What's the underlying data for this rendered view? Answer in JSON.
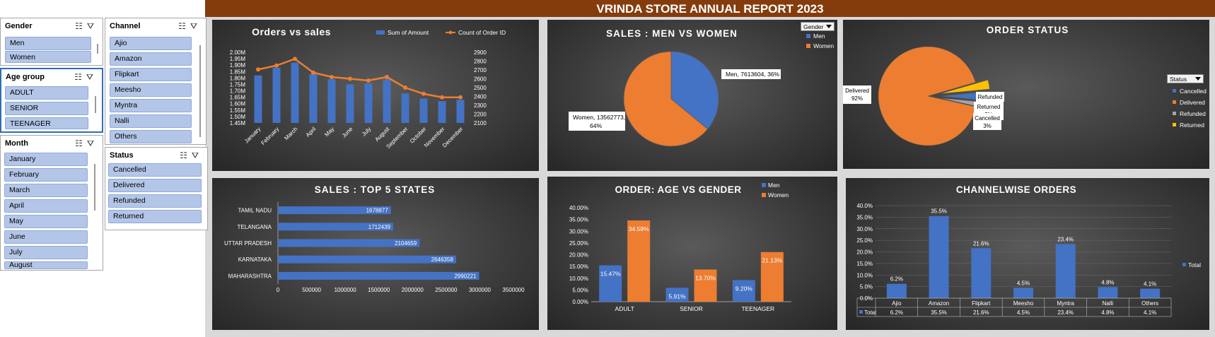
{
  "report": {
    "title": "VRINDA STORE ANNUAL REPORT 2023"
  },
  "colors": {
    "men": "#4472c4",
    "women": "#ed7d31",
    "line": "#ed7d31",
    "banner": "#843c0c",
    "refunded": "#a5a5a5",
    "returned": "#ffc000"
  },
  "slicers": {
    "gender": {
      "title": "Gender",
      "items": [
        "Men",
        "Women"
      ]
    },
    "channel": {
      "title": "Channel",
      "items": [
        "Ajio",
        "Amazon",
        "Flipkart",
        "Meesho",
        "Myntra",
        "Nalli",
        "Others"
      ]
    },
    "age_group": {
      "title": "Age group",
      "items": [
        "ADULT",
        "SENIOR",
        "TEENAGER"
      ]
    },
    "month": {
      "title": "Month",
      "items": [
        "January",
        "February",
        "March",
        "April",
        "May",
        "June",
        "July",
        "August"
      ]
    },
    "status": {
      "title": "Status",
      "items": [
        "Cancelled",
        "Delivered",
        "Refunded",
        "Returned"
      ]
    }
  },
  "dropdowns": {
    "gender_filter": "Gender",
    "status_filter": "Status"
  },
  "chart_data": [
    {
      "id": "orders_vs_sales",
      "type": "bar+line",
      "title": "Orders vs sales",
      "categories": [
        "January",
        "February",
        "March",
        "April",
        "May",
        "June",
        "July",
        "August",
        "September",
        "October",
        "November",
        "December"
      ],
      "series": [
        {
          "name": "Sum of Amount",
          "type": "bar",
          "axis": "left",
          "values": [
            1820000,
            1880000,
            1920000,
            1830000,
            1790000,
            1750000,
            1760000,
            1790000,
            1680000,
            1640000,
            1620000,
            1630000
          ]
        },
        {
          "name": "Count of Order ID",
          "type": "line",
          "axis": "right",
          "values": [
            2705,
            2750,
            2825,
            2670,
            2620,
            2600,
            2580,
            2620,
            2500,
            2430,
            2390,
            2390
          ]
        }
      ],
      "y_left": {
        "range": [
          1450000,
          2000000
        ],
        "ticks": [
          "1.45M",
          "1.50M",
          "1.55M",
          "1.60M",
          "1.65M",
          "1.70M",
          "1.75M",
          "1.80M",
          "1.85M",
          "1.90M",
          "1.95M",
          "2.00M"
        ]
      },
      "y_right": {
        "range": [
          2100,
          2900
        ],
        "ticks": [
          "2100",
          "2200",
          "2300",
          "2400",
          "2500",
          "2600",
          "2700",
          "2800",
          "2900"
        ]
      },
      "legend": "top-right"
    },
    {
      "id": "sales_men_women",
      "type": "pie",
      "title": "SALES : MEN VS WOMEN",
      "slices": [
        {
          "name": "Men",
          "value": 7613604,
          "percent": 36,
          "label": "Men, 7613604, 36%"
        },
        {
          "name": "Women",
          "value": 13562773,
          "percent": 64,
          "label_lines": [
            "Women, 13562773,",
            "64%"
          ]
        }
      ],
      "legend": "right"
    },
    {
      "id": "order_status",
      "type": "pie",
      "title": "ORDER STATUS",
      "slices": [
        {
          "name": "Cancelled",
          "percent": 3,
          "label_lines": [
            "Cancelled",
            "3%"
          ]
        },
        {
          "name": "Delivered",
          "percent": 92,
          "label_lines": [
            "Delivered",
            "92%"
          ]
        },
        {
          "name": "Refunded",
          "percent": 2,
          "label_lines": [
            "Refunded"
          ]
        },
        {
          "name": "Returned",
          "percent": 3,
          "label_lines": [
            "Returned",
            "3%"
          ]
        }
      ],
      "legend": "right"
    },
    {
      "id": "top5_states",
      "type": "bar",
      "orientation": "horizontal",
      "title": "SALES : TOP 5 STATES",
      "categories": [
        "TAMIL NADU",
        "TELANGANA",
        "UTTAR PRADESH",
        "KARNATAKA",
        "MAHARASHTRA"
      ],
      "values": [
        1678877,
        1712439,
        2104659,
        2646358,
        2990221
      ],
      "xlim": [
        0,
        3500000
      ],
      "x_ticks": [
        "0",
        "500000",
        "1000000",
        "1500000",
        "2000000",
        "2500000",
        "3000000",
        "3500000"
      ]
    },
    {
      "id": "age_vs_gender",
      "type": "bar",
      "title": "ORDER: AGE VS GENDER",
      "categories": [
        "ADULT",
        "SENIOR",
        "TEENAGER"
      ],
      "series": [
        {
          "name": "Men",
          "values": [
            15.47,
            5.91,
            9.2
          ],
          "labels": [
            "15.47%",
            "5.91%",
            "9.20%"
          ]
        },
        {
          "name": "Women",
          "values": [
            34.59,
            13.7,
            21.13
          ],
          "labels": [
            "34.59%",
            "13.70%",
            "21.13%"
          ]
        }
      ],
      "ylim": [
        0,
        40
      ],
      "y_ticks": [
        "0.00%",
        "5.00%",
        "10.00%",
        "15.00%",
        "20.00%",
        "25.00%",
        "30.00%",
        "35.00%",
        "40.00%"
      ],
      "legend": "top-right"
    },
    {
      "id": "channelwise_orders",
      "type": "bar",
      "title": "CHANNELWISE ORDERS",
      "categories": [
        "Ajio",
        "Amazon",
        "Flipkart",
        "Meesho",
        "Myntra",
        "Nalli",
        "Others"
      ],
      "series": [
        {
          "name": "Total",
          "values": [
            6.2,
            35.5,
            21.6,
            4.5,
            23.4,
            4.8,
            4.1
          ],
          "labels": [
            "6.2%",
            "35.5%",
            "21.6%",
            "4.5%",
            "23.4%",
            "4.8%",
            "4.1%"
          ]
        }
      ],
      "ylim": [
        0,
        40
      ],
      "y_ticks": [
        "0.0%",
        "5.0%",
        "10.0%",
        "15.0%",
        "20.0%",
        "25.0%",
        "30.0%",
        "35.0%",
        "40.0%"
      ],
      "legend": "right",
      "data_table": true
    }
  ]
}
